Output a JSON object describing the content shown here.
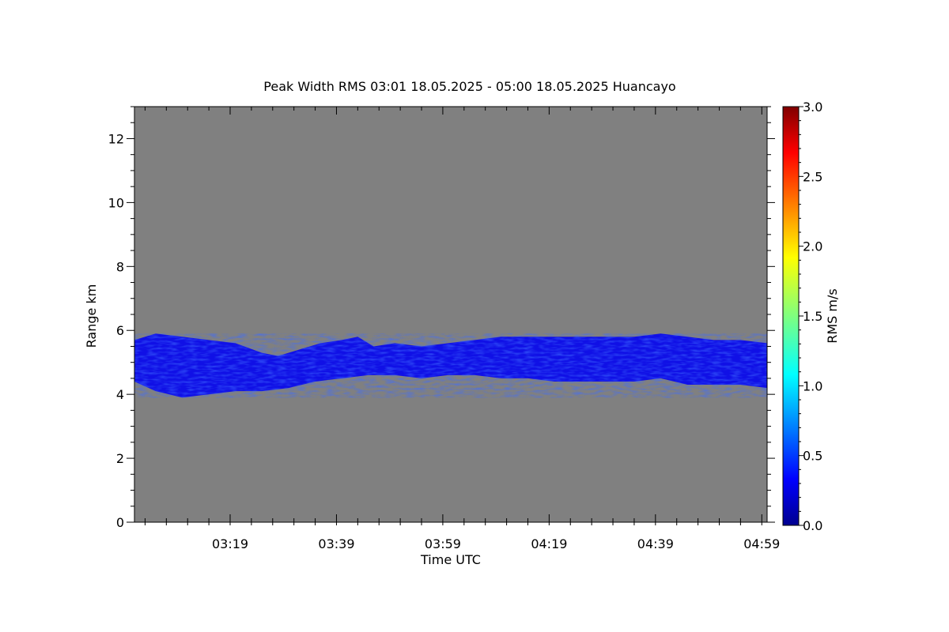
{
  "chart_data": {
    "type": "heatmap",
    "title": "Peak Width RMS   03:01 18.05.2025 - 05:00 18.05.2025 Huancayo",
    "xlabel": "Time UTC",
    "ylabel": "Range km",
    "x_range": [
      "03:01",
      "05:00"
    ],
    "xlim_minutes_utc": [
      181,
      300
    ],
    "ylim": [
      0,
      13
    ],
    "x_ticks": [
      {
        "label": "03:19",
        "minute": 199
      },
      {
        "label": "03:39",
        "minute": 219
      },
      {
        "label": "03:59",
        "minute": 239
      },
      {
        "label": "04:19",
        "minute": 259
      },
      {
        "label": "04:39",
        "minute": 279
      },
      {
        "label": "04:59",
        "minute": 299
      }
    ],
    "y_ticks": [
      "0",
      "2",
      "4",
      "6",
      "8",
      "10",
      "12"
    ],
    "y_tick_values": [
      0,
      2,
      4,
      6,
      8,
      10,
      12
    ],
    "background_color": "#808080",
    "colorbar": {
      "label": "RMS m/s",
      "range": [
        0,
        3
      ],
      "ticks": [
        "0.0",
        "0.5",
        "1.0",
        "1.5",
        "2.0",
        "2.5",
        "3.0"
      ],
      "tick_values": [
        0,
        0.5,
        1,
        1.5,
        2,
        2.5,
        3
      ],
      "colormap": "jet"
    },
    "layer": {
      "description_values": "echo layer with RMS mostly 0.2-0.4 m/s",
      "top_km": [
        [
          181,
          5.7
        ],
        [
          185,
          5.9
        ],
        [
          190,
          5.8
        ],
        [
          195,
          5.7
        ],
        [
          200,
          5.6
        ],
        [
          205,
          5.3
        ],
        [
          208,
          5.2
        ],
        [
          212,
          5.4
        ],
        [
          216,
          5.6
        ],
        [
          220,
          5.7
        ],
        [
          223,
          5.8
        ],
        [
          226,
          5.5
        ],
        [
          230,
          5.6
        ],
        [
          235,
          5.5
        ],
        [
          240,
          5.6
        ],
        [
          245,
          5.7
        ],
        [
          250,
          5.8
        ],
        [
          255,
          5.8
        ],
        [
          260,
          5.8
        ],
        [
          265,
          5.8
        ],
        [
          270,
          5.8
        ],
        [
          275,
          5.8
        ],
        [
          280,
          5.9
        ],
        [
          285,
          5.8
        ],
        [
          290,
          5.7
        ],
        [
          295,
          5.7
        ],
        [
          300,
          5.6
        ]
      ],
      "bottom_km": [
        [
          181,
          4.4
        ],
        [
          185,
          4.1
        ],
        [
          190,
          3.9
        ],
        [
          195,
          4.0
        ],
        [
          200,
          4.1
        ],
        [
          205,
          4.1
        ],
        [
          210,
          4.2
        ],
        [
          215,
          4.4
        ],
        [
          220,
          4.5
        ],
        [
          225,
          4.6
        ],
        [
          230,
          4.6
        ],
        [
          235,
          4.5
        ],
        [
          240,
          4.6
        ],
        [
          245,
          4.6
        ],
        [
          250,
          4.5
        ],
        [
          255,
          4.5
        ],
        [
          260,
          4.4
        ],
        [
          265,
          4.4
        ],
        [
          270,
          4.4
        ],
        [
          275,
          4.4
        ],
        [
          280,
          4.5
        ],
        [
          285,
          4.3
        ],
        [
          290,
          4.3
        ],
        [
          295,
          4.3
        ],
        [
          300,
          4.2
        ]
      ],
      "rms_typical": 0.35
    }
  }
}
